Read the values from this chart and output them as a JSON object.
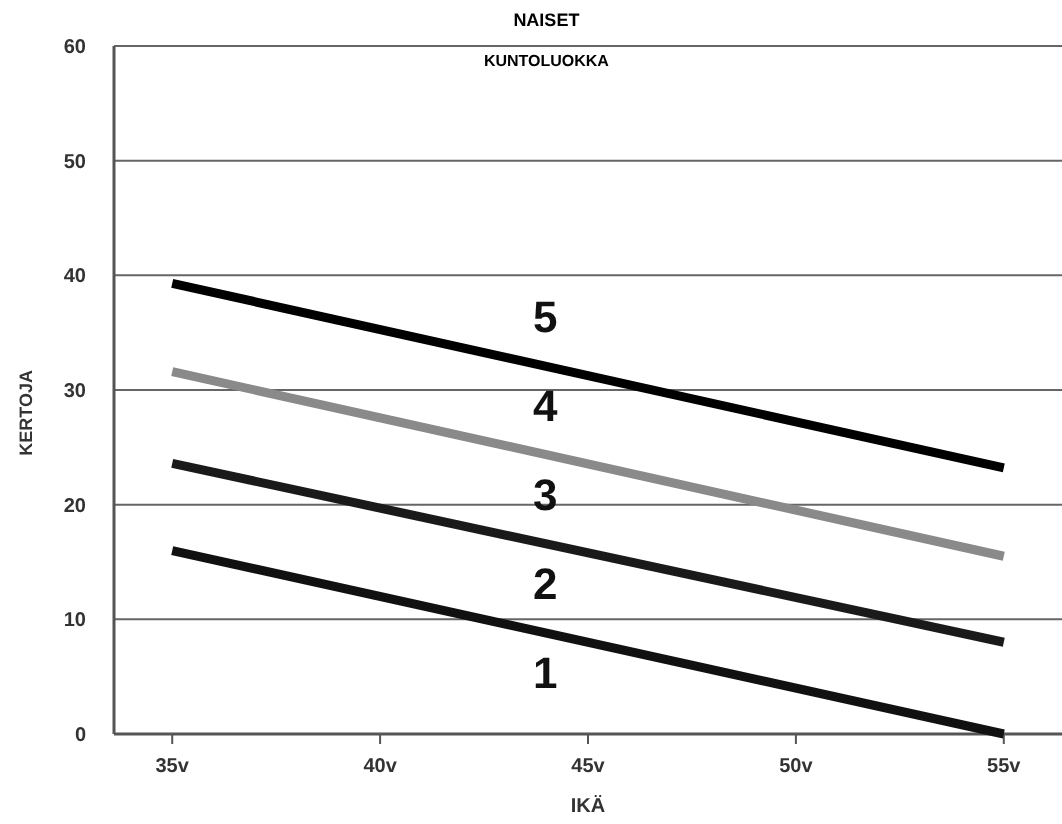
{
  "chart_data": {
    "type": "line",
    "title": "NAISET",
    "subtitle": "KUNTOLUOKKA",
    "xlabel": "IKÄ",
    "ylabel": "KERTOJA",
    "x": [
      35,
      55
    ],
    "series": [
      {
        "color": "#000000",
        "values": [
          39.3,
          23.2
        ]
      },
      {
        "color": "#8a8a8a",
        "values": [
          31.6,
          15.5
        ]
      },
      {
        "color": "#1a1a1a",
        "values": [
          23.6,
          8
        ]
      },
      {
        "color": "#111111",
        "values": [
          16,
          0
        ]
      }
    ],
    "xlim": [
      33.6,
      56.4
    ],
    "xticks": [
      {
        "value": 35,
        "label": "35v"
      },
      {
        "value": 40,
        "label": "40v"
      },
      {
        "value": 45,
        "label": "45v"
      },
      {
        "value": 50,
        "label": "50v"
      },
      {
        "value": 55,
        "label": "55v"
      }
    ],
    "ylim": [
      0,
      60
    ],
    "yticks": [
      0,
      10,
      20,
      30,
      40,
      50,
      60
    ],
    "grid": "y",
    "marker": "none",
    "line_style": "solid",
    "annotations": [
      "5",
      "4",
      "3",
      "2",
      "1"
    ]
  }
}
